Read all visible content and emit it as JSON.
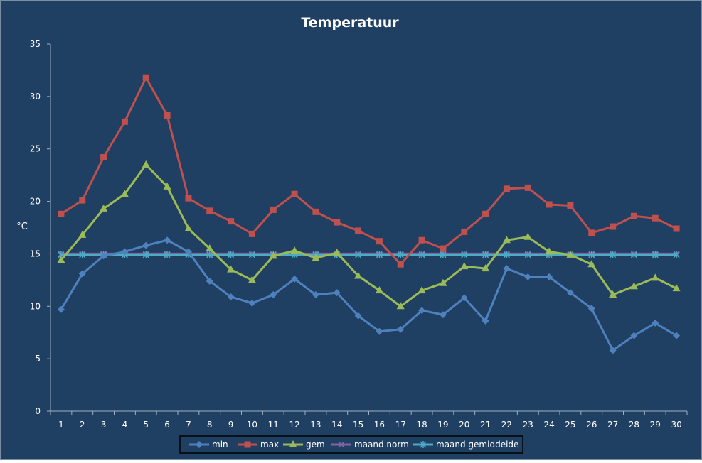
{
  "chart_data": {
    "type": "line",
    "title": "Temperatuur",
    "xlabel": "",
    "ylabel": "°C",
    "ylim": [
      0,
      35
    ],
    "yticks": [
      0,
      5,
      10,
      15,
      20,
      25,
      30,
      35
    ],
    "grid": false,
    "legend_position": "bottom",
    "x": [
      1,
      2,
      3,
      4,
      5,
      6,
      7,
      8,
      9,
      10,
      11,
      12,
      13,
      14,
      15,
      16,
      17,
      18,
      19,
      20,
      21,
      22,
      23,
      24,
      25,
      26,
      27,
      28,
      29,
      30
    ],
    "series": [
      {
        "name": "min",
        "color": "#4f81bd",
        "marker": "diamond",
        "values": [
          9.7,
          13.1,
          14.8,
          15.2,
          15.8,
          16.3,
          15.2,
          12.4,
          10.9,
          10.3,
          11.1,
          12.6,
          11.1,
          11.3,
          9.1,
          7.6,
          7.8,
          9.6,
          9.2,
          10.8,
          8.6,
          13.6,
          12.8,
          12.8,
          11.3,
          9.8,
          5.8,
          7.2,
          8.4,
          7.2
        ]
      },
      {
        "name": "max",
        "color": "#c0504d",
        "marker": "square",
        "values": [
          18.8,
          20.1,
          24.2,
          27.6,
          31.8,
          28.2,
          20.3,
          19.1,
          18.1,
          16.9,
          19.2,
          20.7,
          19.0,
          18.0,
          17.2,
          16.2,
          14.0,
          16.3,
          15.5,
          17.1,
          18.8,
          21.2,
          21.3,
          19.7,
          19.6,
          17.0,
          17.6,
          18.6,
          18.4,
          17.4
        ]
      },
      {
        "name": "gem",
        "color": "#9bbb59",
        "marker": "triangle",
        "values": [
          14.4,
          16.8,
          19.3,
          20.7,
          23.5,
          21.4,
          17.4,
          15.5,
          13.5,
          12.5,
          14.8,
          15.3,
          14.6,
          15.1,
          12.9,
          11.5,
          10.0,
          11.5,
          12.2,
          13.8,
          13.6,
          16.3,
          16.6,
          15.2,
          14.9,
          14.0,
          11.1,
          11.9,
          12.7,
          11.7
        ]
      },
      {
        "name": "maand norm",
        "color": "#8064a2",
        "marker": "x",
        "values": [
          15.0,
          15.0,
          15.0,
          15.0,
          15.0,
          15.0,
          15.0,
          15.0,
          15.0,
          15.0,
          15.0,
          15.0,
          15.0,
          15.0,
          15.0,
          15.0,
          15.0,
          15.0,
          15.0,
          15.0,
          15.0,
          15.0,
          15.0,
          15.0,
          15.0,
          15.0,
          15.0,
          15.0,
          15.0,
          15.0
        ]
      },
      {
        "name": "maand gemiddelde",
        "color": "#4bacc6",
        "marker": "asterisk",
        "values": [
          14.9,
          14.9,
          14.9,
          14.9,
          14.9,
          14.9,
          14.9,
          14.9,
          14.9,
          14.9,
          14.9,
          14.9,
          14.9,
          14.9,
          14.9,
          14.9,
          14.9,
          14.9,
          14.9,
          14.9,
          14.9,
          14.9,
          14.9,
          14.9,
          14.9,
          14.9,
          14.9,
          14.9,
          14.9,
          14.9
        ]
      }
    ]
  }
}
